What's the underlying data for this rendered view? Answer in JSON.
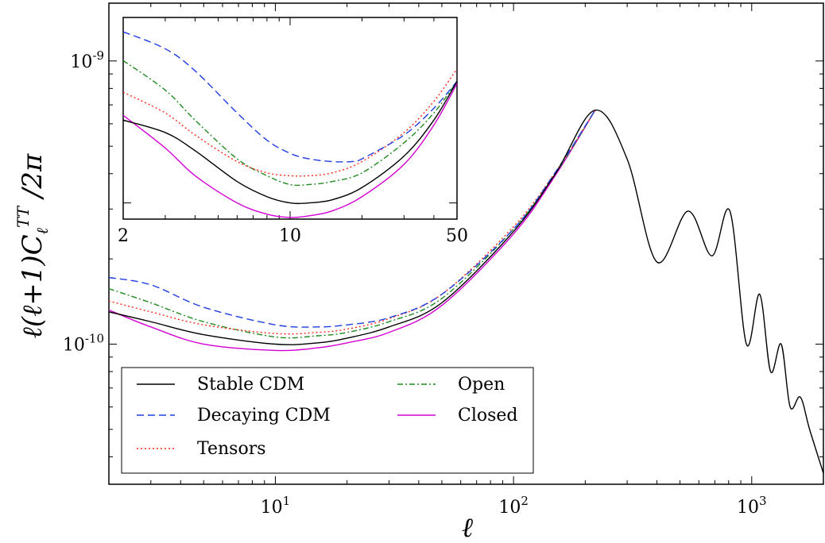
{
  "chart_data": [
    {
      "type": "line",
      "title": "",
      "xlabel": "ℓ",
      "ylabel": "ℓ(ℓ+1)C_ℓ^TT / 2π",
      "xscale": "log",
      "yscale": "log",
      "xlim": [
        2,
        2000
      ],
      "ylim": [
        3.2e-11,
        1.6e-09
      ],
      "xticks": [
        {
          "value": 10,
          "base": "10",
          "exp": "1"
        },
        {
          "value": 100,
          "base": "10",
          "exp": "2"
        },
        {
          "value": 1000,
          "base": "10",
          "exp": "3"
        }
      ],
      "yticks": [
        {
          "value": 1e-10,
          "base": "10",
          "exp": "-10"
        },
        {
          "value": 1e-09,
          "base": "10",
          "exp": "-9"
        }
      ],
      "grid": false,
      "legend_position": "lower-left",
      "series": [
        {
          "name": "Stable CDM",
          "color": "#000000",
          "dash": "solid",
          "x": [
            2,
            3,
            5,
            10,
            15,
            20,
            30,
            50,
            100,
            150,
            220,
            300,
            400,
            540,
            680,
            810,
            950,
            1080,
            1200,
            1330,
            1450,
            1600,
            1750,
            2000
          ],
          "y": [
            1.3e-10,
            1.2e-10,
            1.08e-10,
            1e-10,
            1.01e-10,
            1.05e-10,
            1.15e-10,
            1.4e-10,
            2.5e-10,
            4e-10,
            6.7e-10,
            4.5e-10,
            1.95e-10,
            2.95e-10,
            2.05e-10,
            2.95e-10,
            1e-10,
            1.5e-10,
            8e-11,
            1e-10,
            6e-11,
            6.5e-11,
            5e-11,
            3.5e-11
          ]
        },
        {
          "name": "Decaying CDM",
          "color": "#1f3de0",
          "dash": "dashed",
          "x": [
            2,
            3,
            5,
            10,
            15,
            20,
            30,
            50,
            100,
            150,
            220
          ],
          "y": [
            1.72e-10,
            1.62e-10,
            1.35e-10,
            1.17e-10,
            1.15e-10,
            1.17e-10,
            1.24e-10,
            1.5e-10,
            2.55e-10,
            4.05e-10,
            6.7e-10
          ]
        },
        {
          "name": "Tensors",
          "color": "#ff2a1a",
          "dash": "dotted",
          "x": [
            2,
            3,
            5,
            10,
            15,
            20,
            30,
            50,
            100,
            150,
            220
          ],
          "y": [
            1.42e-10,
            1.3e-10,
            1.17e-10,
            1.09e-10,
            1.1e-10,
            1.13e-10,
            1.23e-10,
            1.5e-10,
            2.6e-10,
            4.05e-10,
            6.7e-10
          ]
        },
        {
          "name": "Open",
          "color": "#1f8a1f",
          "dash": "dashdot",
          "x": [
            2,
            3,
            5,
            10,
            15,
            20,
            30,
            50,
            100,
            150,
            220
          ],
          "y": [
            1.57e-10,
            1.4e-10,
            1.2e-10,
            1.06e-10,
            1.07e-10,
            1.1e-10,
            1.2e-10,
            1.45e-10,
            2.55e-10,
            4e-10,
            6.7e-10
          ]
        },
        {
          "name": "Closed",
          "color": "#d400d4",
          "dash": "solid",
          "x": [
            2,
            3,
            5,
            10,
            15,
            20,
            30,
            50,
            100,
            150,
            220
          ],
          "y": [
            1.32e-10,
            1.15e-10,
            1e-10,
            9.5e-11,
            9.7e-11,
            1.01e-10,
            1.1e-10,
            1.37e-10,
            2.45e-10,
            3.95e-10,
            6.7e-10
          ]
        }
      ]
    },
    {
      "type": "line",
      "title": "",
      "xscale": "log",
      "yscale": "log",
      "xlim": [
        2,
        50
      ],
      "ylim": [
        9.5e-11,
        1.8e-10
      ],
      "xticks": [
        {
          "value": 2,
          "label": "2"
        },
        {
          "value": 10,
          "label": "10"
        },
        {
          "value": 50,
          "label": "50"
        }
      ],
      "series": [
        {
          "name": "Stable CDM",
          "color": "#000000",
          "dash": "solid",
          "x": [
            2,
            3,
            4,
            6,
            8,
            10,
            12,
            15,
            20,
            30,
            40,
            50
          ],
          "y": [
            1.3e-10,
            1.25e-10,
            1.18e-10,
            1.07e-10,
            1.02e-10,
            1e-10,
            1e-10,
            1.01e-10,
            1.05e-10,
            1.16e-10,
            1.3e-10,
            1.47e-10
          ]
        },
        {
          "name": "Decaying CDM",
          "color": "#1f3de0",
          "dash": "dashed",
          "x": [
            2,
            3,
            4,
            6,
            8,
            10,
            12,
            15,
            18,
            20,
            30,
            40,
            50
          ],
          "y": [
            1.72e-10,
            1.63e-10,
            1.52e-10,
            1.33e-10,
            1.22e-10,
            1.17e-10,
            1.15e-10,
            1.14e-10,
            1.14e-10,
            1.15e-10,
            1.24e-10,
            1.35e-10,
            1.47e-10
          ]
        },
        {
          "name": "Tensors",
          "color": "#ff2a1a",
          "dash": "dotted",
          "x": [
            2,
            3,
            4,
            6,
            8,
            10,
            12,
            15,
            20,
            30,
            40,
            50
          ],
          "y": [
            1.42e-10,
            1.33e-10,
            1.24e-10,
            1.14e-10,
            1.1e-10,
            1.09e-10,
            1.09e-10,
            1.1e-10,
            1.14e-10,
            1.25e-10,
            1.38e-10,
            1.53e-10
          ]
        },
        {
          "name": "Open",
          "color": "#1f8a1f",
          "dash": "dashdot",
          "x": [
            2,
            3,
            4,
            6,
            8,
            10,
            12,
            15,
            20,
            30,
            40,
            50
          ],
          "y": [
            1.57e-10,
            1.43e-10,
            1.3e-10,
            1.15e-10,
            1.09e-10,
            1.06e-10,
            1.06e-10,
            1.07e-10,
            1.1e-10,
            1.21e-10,
            1.33e-10,
            1.47e-10
          ]
        },
        {
          "name": "Closed",
          "color": "#d400d4",
          "dash": "solid",
          "x": [
            2,
            3,
            4,
            6,
            8,
            10,
            12,
            15,
            20,
            30,
            40,
            50
          ],
          "y": [
            1.32e-10,
            1.19e-10,
            1.09e-10,
            1e-10,
            9.65e-11,
            9.55e-11,
            9.6e-11,
            9.75e-11,
            1.02e-10,
            1.13e-10,
            1.28e-10,
            1.46e-10
          ]
        }
      ]
    }
  ]
}
